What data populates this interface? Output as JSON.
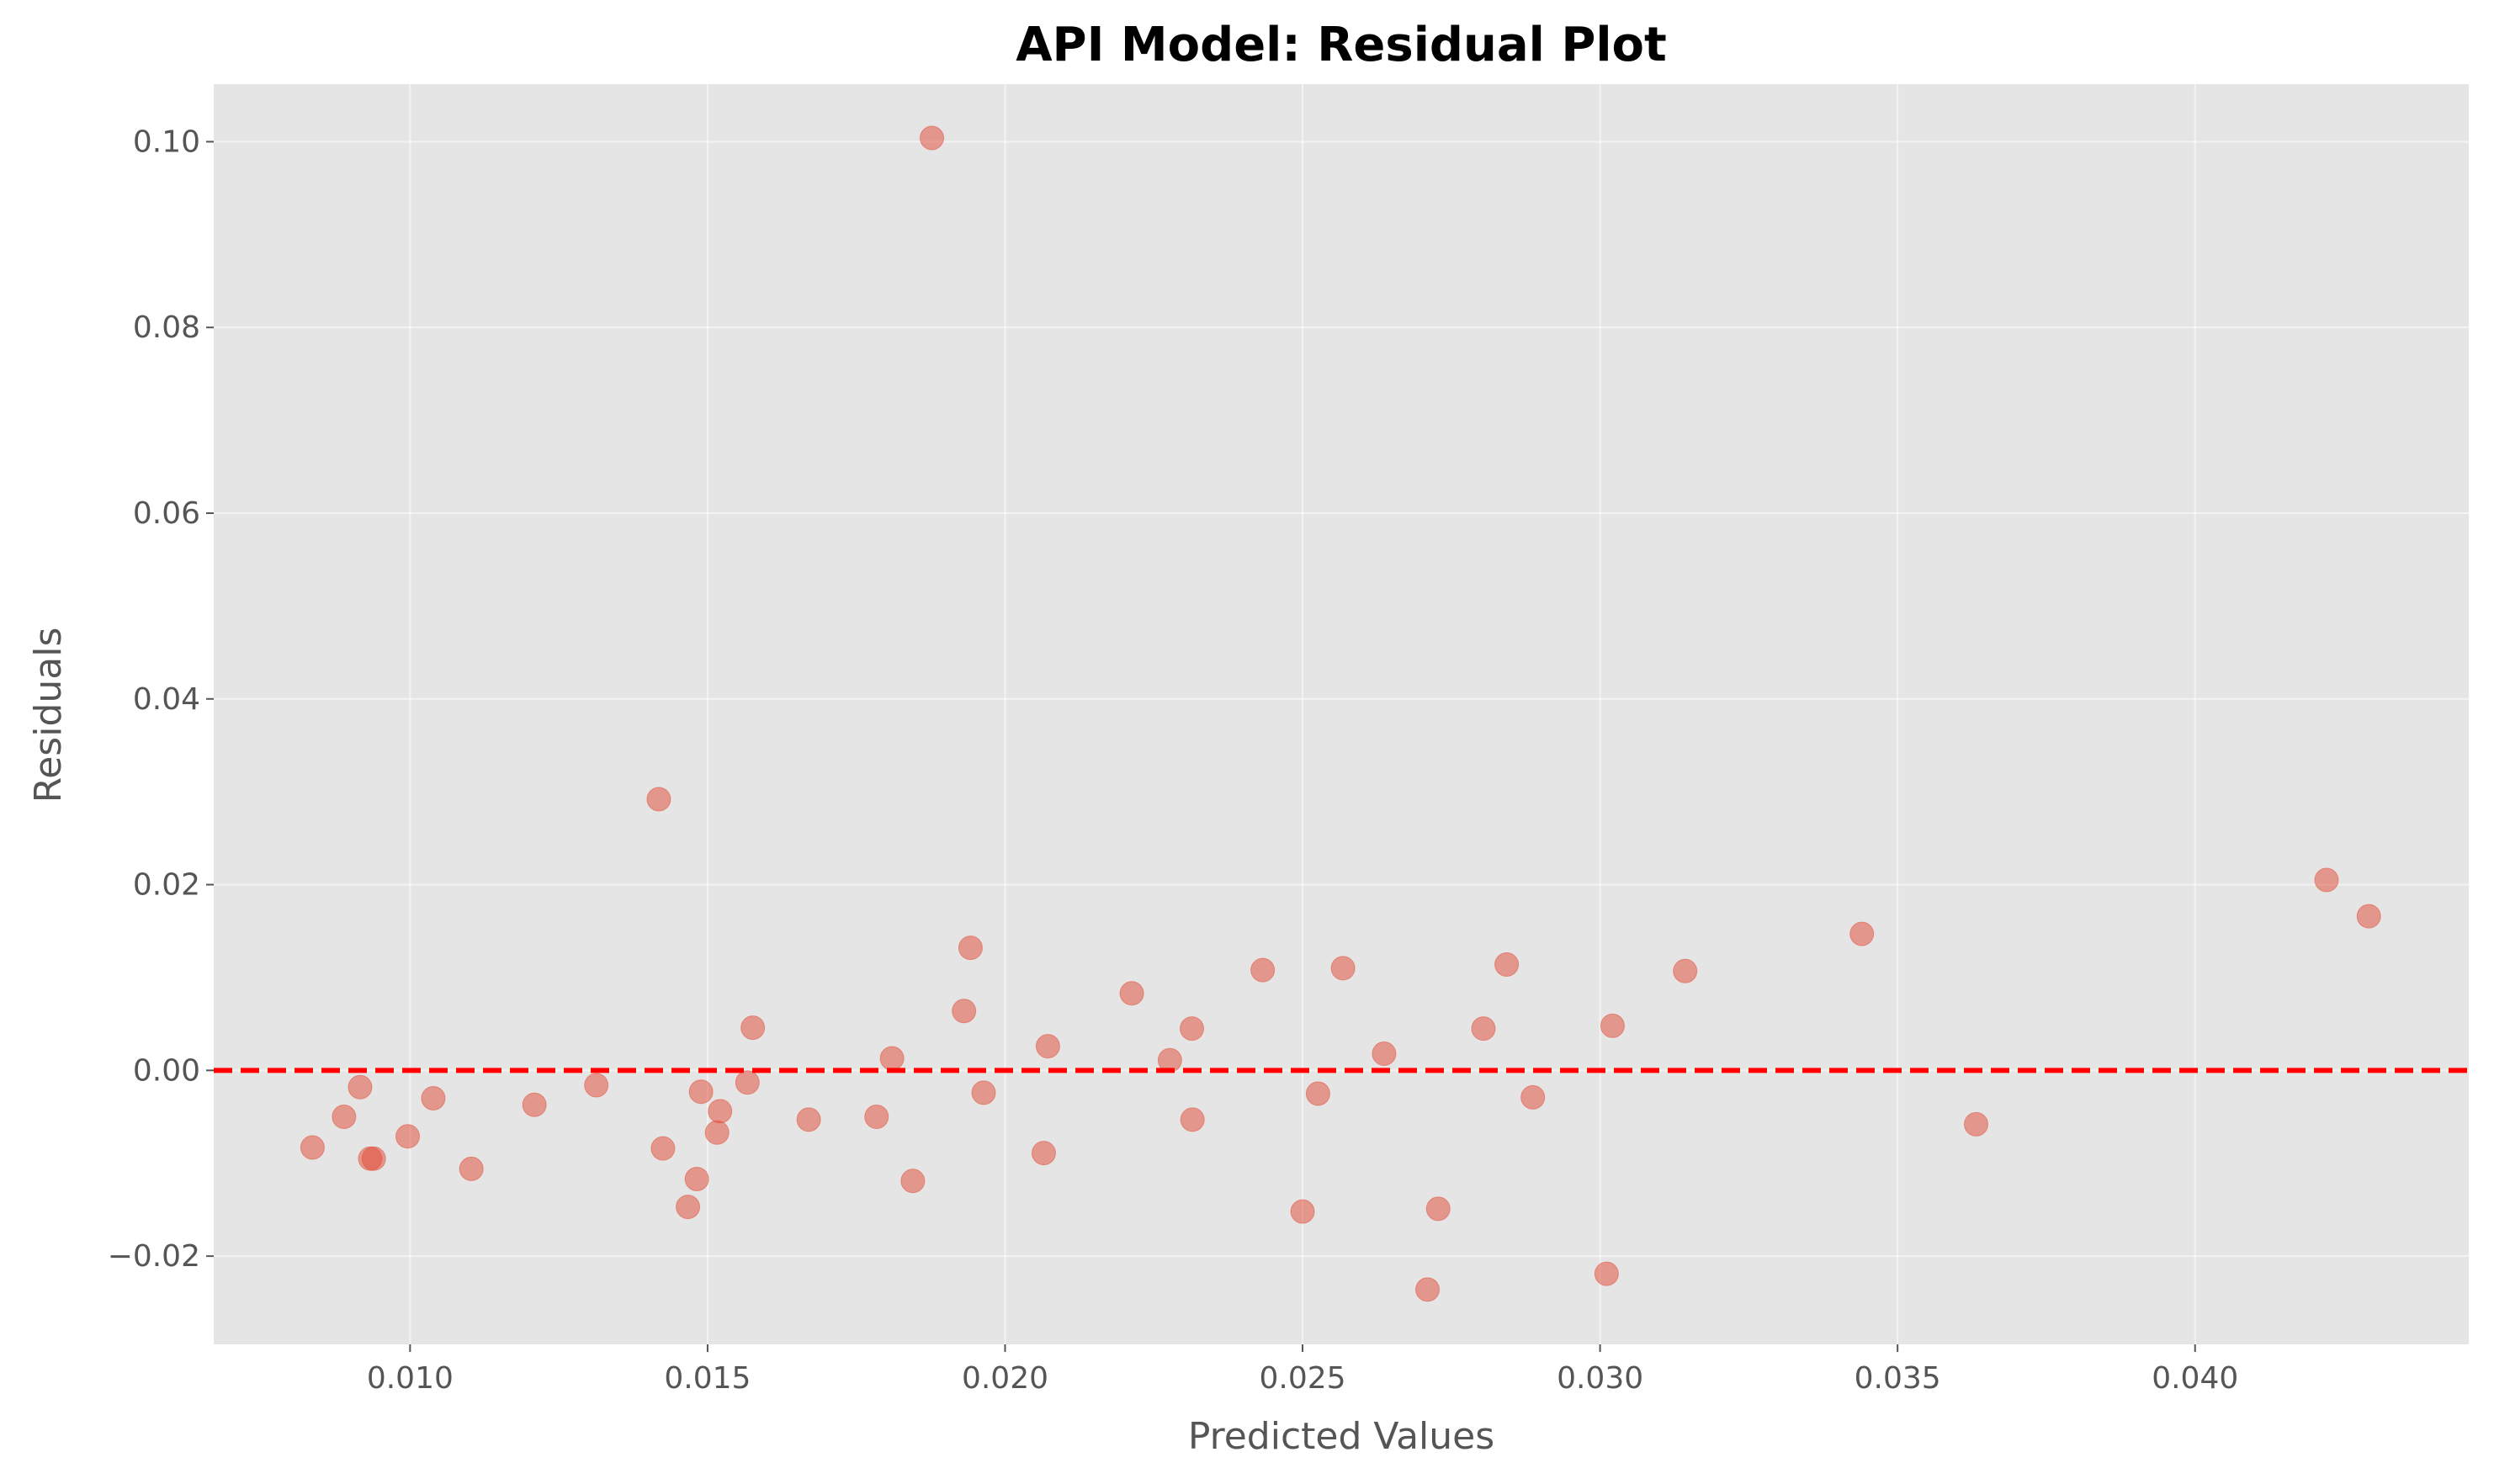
{
  "chart_data": {
    "type": "scatter",
    "title": "API Model: Residual Plot",
    "xlabel": "Predicted Values",
    "ylabel": "Residuals",
    "xlim": [
      0.0067,
      0.0446
    ],
    "ylim": [
      -0.0295,
      0.1062
    ],
    "x_ticks": [
      {
        "value": 0.01,
        "label": "0.010"
      },
      {
        "value": 0.015,
        "label": "0.015"
      },
      {
        "value": 0.02,
        "label": "0.020"
      },
      {
        "value": 0.025,
        "label": "0.025"
      },
      {
        "value": 0.03,
        "label": "0.030"
      },
      {
        "value": 0.035,
        "label": "0.035"
      },
      {
        "value": 0.04,
        "label": "0.040"
      }
    ],
    "y_ticks": [
      {
        "value": -0.02,
        "label": "−0.02"
      },
      {
        "value": 0.0,
        "label": "0.00"
      },
      {
        "value": 0.02,
        "label": "0.02"
      },
      {
        "value": 0.04,
        "label": "0.04"
      },
      {
        "value": 0.06,
        "label": "0.06"
      },
      {
        "value": 0.08,
        "label": "0.08"
      },
      {
        "value": 0.1,
        "label": "0.10"
      }
    ],
    "grid": true,
    "background_color": "#e5e5e5",
    "point_color": "#e24a33",
    "point_alpha": 0.5,
    "reference_line": {
      "y": 0.0,
      "style": "dashed",
      "color": "#ff0000"
    },
    "points": [
      {
        "x": 0.00836,
        "y": -0.0083
      },
      {
        "x": 0.00889,
        "y": -0.005
      },
      {
        "x": 0.00916,
        "y": -0.0018
      },
      {
        "x": 0.00933,
        "y": -0.0095
      },
      {
        "x": 0.00939,
        "y": -0.0095
      },
      {
        "x": 0.00996,
        "y": -0.0071
      },
      {
        "x": 0.01039,
        "y": -0.003
      },
      {
        "x": 0.01103,
        "y": -0.0106
      },
      {
        "x": 0.01209,
        "y": -0.0037
      },
      {
        "x": 0.01313,
        "y": -0.0016
      },
      {
        "x": 0.01418,
        "y": 0.0292
      },
      {
        "x": 0.01425,
        "y": -0.0084
      },
      {
        "x": 0.01467,
        "y": -0.0147
      },
      {
        "x": 0.01482,
        "y": -0.0117
      },
      {
        "x": 0.01489,
        "y": -0.0023
      },
      {
        "x": 0.01516,
        "y": -0.0067
      },
      {
        "x": 0.01521,
        "y": -0.0044
      },
      {
        "x": 0.01567,
        "y": -0.0013
      },
      {
        "x": 0.01576,
        "y": 0.0046
      },
      {
        "x": 0.0167,
        "y": -0.0053
      },
      {
        "x": 0.01784,
        "y": -0.005
      },
      {
        "x": 0.0181,
        "y": 0.0013
      },
      {
        "x": 0.01845,
        "y": -0.0119
      },
      {
        "x": 0.01877,
        "y": 0.1004
      },
      {
        "x": 0.01931,
        "y": 0.0064
      },
      {
        "x": 0.01942,
        "y": 0.0132
      },
      {
        "x": 0.01964,
        "y": -0.0024
      },
      {
        "x": 0.02065,
        "y": -0.0089
      },
      {
        "x": 0.02072,
        "y": 0.0026
      },
      {
        "x": 0.02213,
        "y": 0.0083
      },
      {
        "x": 0.02277,
        "y": 0.0011
      },
      {
        "x": 0.02314,
        "y": 0.0045
      },
      {
        "x": 0.02315,
        "y": -0.0053
      },
      {
        "x": 0.02433,
        "y": 0.0108
      },
      {
        "x": 0.025,
        "y": -0.0152
      },
      {
        "x": 0.02526,
        "y": -0.0025
      },
      {
        "x": 0.02568,
        "y": 0.011
      },
      {
        "x": 0.02637,
        "y": 0.0018
      },
      {
        "x": 0.0271,
        "y": -0.0236
      },
      {
        "x": 0.02728,
        "y": -0.0149
      },
      {
        "x": 0.02804,
        "y": 0.0045
      },
      {
        "x": 0.02843,
        "y": 0.0114
      },
      {
        "x": 0.02887,
        "y": -0.0029
      },
      {
        "x": 0.03011,
        "y": -0.0219
      },
      {
        "x": 0.03021,
        "y": 0.0048
      },
      {
        "x": 0.03143,
        "y": 0.0107
      },
      {
        "x": 0.0344,
        "y": 0.0147
      },
      {
        "x": 0.03632,
        "y": -0.0058
      },
      {
        "x": 0.04221,
        "y": 0.0205
      },
      {
        "x": 0.04292,
        "y": 0.0166
      }
    ]
  }
}
